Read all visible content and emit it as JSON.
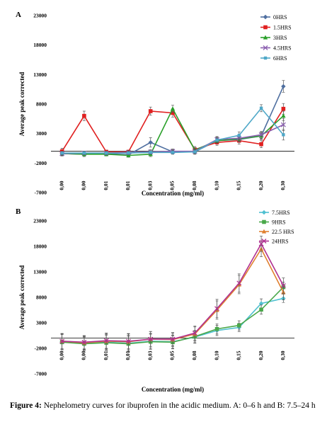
{
  "chart_data": [
    {
      "panel": "A",
      "type": "line",
      "categories": [
        "0,00",
        "0,00",
        "0,01",
        "0,01",
        "0,03",
        "0,05",
        "0,08",
        "0,10",
        "0,15",
        "0,20",
        "0,30"
      ],
      "xlabel": "Concentration (mg/ml)",
      "ylabel": "Average peak corrected",
      "ylim": [
        -7000,
        23000
      ],
      "yticks": [
        23000,
        18000,
        13000,
        8000,
        3000,
        -2000,
        -7000
      ],
      "legend_position": "top-right",
      "series": [
        {
          "name": "0HRS",
          "color": "#4f6fa0",
          "marker": "diamond",
          "values": [
            -400,
            -500,
            -400,
            -600,
            1500,
            -100,
            -100,
            1800,
            2000,
            2600,
            11000
          ],
          "errors": [
            400,
            400,
            300,
            300,
            800,
            400,
            400,
            500,
            500,
            600,
            1000
          ]
        },
        {
          "name": "1.5HRS",
          "color": "#e02020",
          "marker": "square",
          "values": [
            0,
            6000,
            -100,
            -100,
            6800,
            6500,
            300,
            1500,
            1800,
            1200,
            7200
          ],
          "errors": [
            500,
            800,
            300,
            300,
            700,
            700,
            500,
            500,
            600,
            600,
            900
          ]
        },
        {
          "name": "3HRS",
          "color": "#2aa02a",
          "marker": "triangle",
          "values": [
            -400,
            -500,
            -500,
            -700,
            -500,
            7200,
            200,
            1800,
            2100,
            2600,
            6000
          ],
          "errors": [
            300,
            300,
            300,
            300,
            400,
            600,
            400,
            400,
            500,
            500,
            800
          ]
        },
        {
          "name": "4.5HRS",
          "color": "#8b5fb0",
          "marker": "x",
          "values": [
            -400,
            -300,
            -300,
            -200,
            -100,
            0,
            0,
            2000,
            2200,
            2800,
            4500
          ],
          "errors": [
            300,
            300,
            300,
            300,
            400,
            400,
            400,
            500,
            500,
            600,
            1000
          ]
        },
        {
          "name": "6HRS",
          "color": "#4fa8c8",
          "marker": "square-small",
          "values": [
            -300,
            -300,
            -300,
            -300,
            -200,
            -200,
            -100,
            1900,
            2700,
            7300,
            2800
          ],
          "errors": [
            300,
            300,
            300,
            300,
            300,
            300,
            400,
            500,
            600,
            600,
            900
          ]
        }
      ]
    },
    {
      "panel": "B",
      "type": "line",
      "categories": [
        "0,00",
        "0,00",
        "0,01",
        "0,01",
        "0,03",
        "0,05",
        "0,08",
        "0,10",
        "0,15",
        "0,20",
        "0,30"
      ],
      "xlabel": "Concentration (mg/ml)",
      "ylabel": "Average peak corrected",
      "ylim": [
        -7000,
        23000
      ],
      "yticks": [
        23000,
        18000,
        13000,
        8000,
        3000,
        -2000,
        -7000
      ],
      "legend_position": "top-right",
      "series": [
        {
          "name": "7.5HRS",
          "color": "#4fc0d0",
          "marker": "diamond",
          "values": [
            -700,
            -1000,
            -800,
            -1000,
            -600,
            -700,
            200,
            1500,
            2100,
            6800,
            7800
          ],
          "errors": [
            1500,
            1300,
            1500,
            1500,
            1500,
            1300,
            1200,
            1000,
            800,
            900,
            800
          ]
        },
        {
          "name": "9HRS",
          "color": "#4aa84a",
          "marker": "square",
          "values": [
            -800,
            -1100,
            -900,
            -1100,
            -700,
            -800,
            300,
            1800,
            2500,
            5600,
            10000
          ],
          "errors": [
            1500,
            1300,
            1500,
            1500,
            1500,
            1300,
            1200,
            1000,
            900,
            900,
            1000
          ]
        },
        {
          "name": "22.5 HRS",
          "color": "#e08030",
          "marker": "triangle",
          "values": [
            -600,
            -900,
            -600,
            -700,
            -200,
            -300,
            800,
            5500,
            10500,
            17500,
            9000
          ],
          "errors": [
            1500,
            1300,
            1500,
            1500,
            1500,
            1300,
            1400,
            1800,
            1800,
            1500,
            1500
          ]
        },
        {
          "name": "24HRS",
          "color": "#b03090",
          "marker": "x",
          "values": [
            -600,
            -800,
            -500,
            -600,
            -200,
            -200,
            1000,
            5800,
            10800,
            18500,
            10300
          ],
          "errors": [
            1500,
            1300,
            1500,
            1500,
            1500,
            1300,
            1400,
            1800,
            1800,
            1500,
            1500
          ]
        }
      ]
    }
  ],
  "caption": {
    "label": "Figure 4:",
    "text": " Nephelometry curves for ibuprofen in the acidic medium. A: 0–6 h and B: 7.5–24 h"
  }
}
